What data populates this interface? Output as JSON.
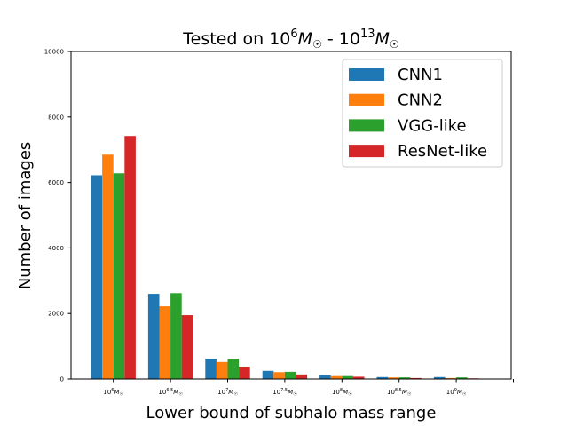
{
  "chart_data": {
    "type": "bar",
    "title": "Tested on 10^6M☉ - 10^13M☉",
    "title_parts": {
      "prefix": "Tested on 10",
      "sup1": "6",
      "m1": "M",
      "sep": " - 10",
      "sup2": "13",
      "m2": "M"
    },
    "xlabel": "Lower bound of subhalo mass range",
    "ylabel": "Number of images",
    "ylim": [
      0,
      10000
    ],
    "yticks": [
      "0",
      "2000",
      "4000",
      "6000",
      "8000",
      "10000"
    ],
    "categories": [
      "10^6M☉",
      "10^6.5M☉",
      "10^7M☉",
      "10^7.5M☉",
      "10^8M☉",
      "10^8.5M☉",
      "10^9M☉"
    ],
    "category_parts": [
      {
        "base": "10",
        "exp": "6",
        "m": "M"
      },
      {
        "base": "10",
        "exp": "6.5",
        "m": "M"
      },
      {
        "base": "10",
        "exp": "7",
        "m": "M"
      },
      {
        "base": "10",
        "exp": "7.5",
        "m": "M"
      },
      {
        "base": "10",
        "exp": "8",
        "m": "M"
      },
      {
        "base": "10",
        "exp": "8.5",
        "m": "M"
      },
      {
        "base": "10",
        "exp": "9",
        "m": "M"
      }
    ],
    "series": [
      {
        "name": "CNN1",
        "color": "#1f77b4",
        "values": [
          6220,
          2600,
          620,
          250,
          120,
          60,
          60
        ]
      },
      {
        "name": "CNN2",
        "color": "#ff7f0e",
        "values": [
          6850,
          2220,
          520,
          210,
          90,
          50,
          30
        ]
      },
      {
        "name": "VGG-like",
        "color": "#2ca02c",
        "values": [
          6280,
          2620,
          620,
          220,
          90,
          50,
          50
        ]
      },
      {
        "name": "ResNet-like",
        "color": "#d62728",
        "values": [
          7420,
          1950,
          380,
          140,
          70,
          30,
          20
        ]
      }
    ],
    "legend_position": "top-right",
    "grid": false
  }
}
